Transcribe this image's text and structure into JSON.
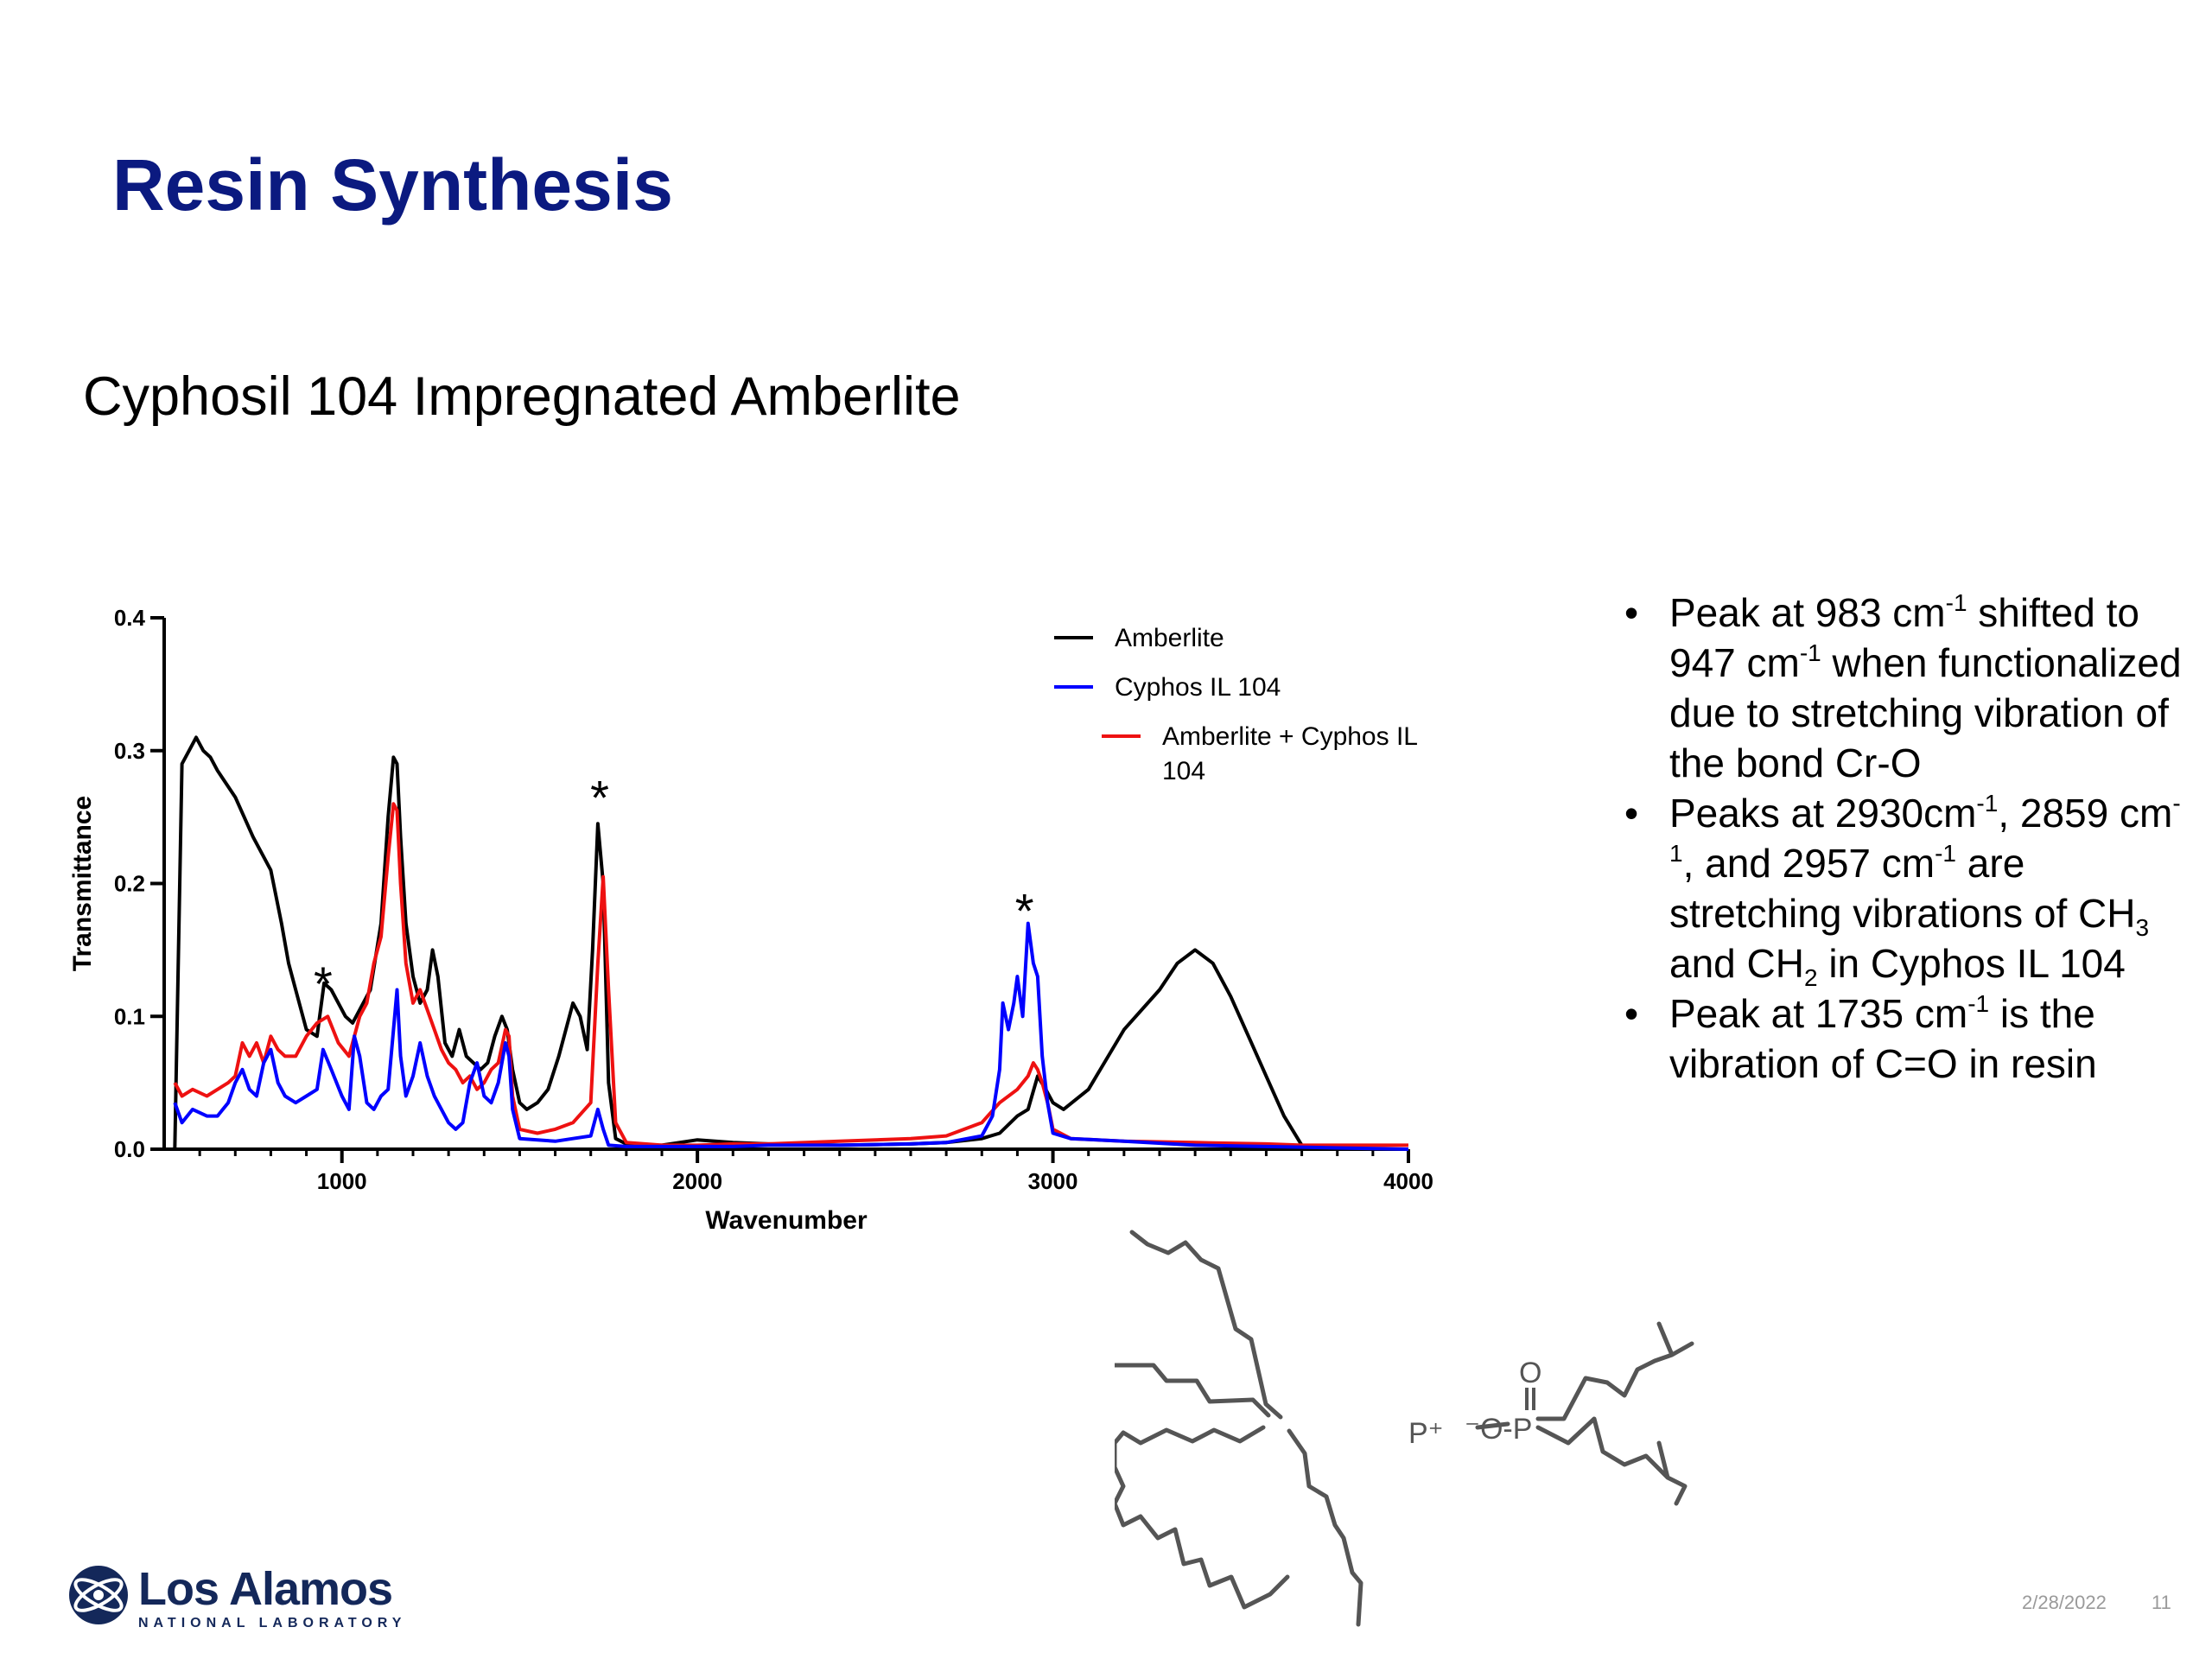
{
  "slide": {
    "title": "Resin Synthesis",
    "subtitle": "Cyphosil 104 Impregnated Amberlite",
    "date": "2/28/2022",
    "page": "11"
  },
  "bullets": [
    {
      "parts": [
        {
          "t": "Peak at 983 cm"
        },
        {
          "t": "-1",
          "sup": true
        },
        {
          "t": " shifted to 947 cm"
        },
        {
          "t": "-1",
          "sup": true
        },
        {
          "t": " when functionalized due to stretching vibration of the bond Cr-O"
        }
      ]
    },
    {
      "parts": [
        {
          "t": "Peaks at 2930cm"
        },
        {
          "t": "-1",
          "sup": true
        },
        {
          "t": ", 2859 cm"
        },
        {
          "t": "-1",
          "sup": true
        },
        {
          "t": ", and 2957 cm"
        },
        {
          "t": "-1",
          "sup": true
        },
        {
          "t": " are stretching vibrations of CH"
        },
        {
          "t": "3",
          "sub": true
        },
        {
          "t": " and CH"
        },
        {
          "t": "2",
          "sub": true
        },
        {
          "t": " in Cyphos IL 104"
        }
      ]
    },
    {
      "parts": [
        {
          "t": "Peak at 1735 cm"
        },
        {
          "t": "-1",
          "sup": true
        },
        {
          "t": " is the vibration of C=O in resin"
        }
      ]
    }
  ],
  "chart_data": {
    "type": "line",
    "xlabel": "Wavenumber",
    "ylabel": "Transmittance",
    "xlim": [
      500,
      4000
    ],
    "ylim": [
      0,
      0.4
    ],
    "xticks": [
      1000,
      2000,
      3000,
      4000
    ],
    "yticks": [
      0.0,
      0.1,
      0.2,
      0.3,
      0.4
    ],
    "grid": false,
    "legend_position": "top-right",
    "annotations": [
      {
        "text": "*",
        "x": 947,
        "y": 0.125
      },
      {
        "text": "*",
        "x": 1725,
        "y": 0.265
      },
      {
        "text": "*",
        "x": 2920,
        "y": 0.18
      }
    ],
    "series": [
      {
        "name": "Amberlite",
        "color": "#000000",
        "x": [
          530,
          550,
          570,
          590,
          610,
          630,
          650,
          700,
          750,
          800,
          830,
          850,
          870,
          900,
          930,
          950,
          970,
          990,
          1010,
          1030,
          1050,
          1080,
          1110,
          1130,
          1145,
          1155,
          1165,
          1180,
          1200,
          1220,
          1240,
          1255,
          1270,
          1290,
          1310,
          1330,
          1350,
          1370,
          1390,
          1410,
          1430,
          1450,
          1465,
          1480,
          1500,
          1520,
          1550,
          1580,
          1610,
          1630,
          1650,
          1670,
          1690,
          1705,
          1720,
          1735,
          1750,
          1770,
          1800,
          1850,
          1900,
          2000,
          2100,
          2200,
          2400,
          2600,
          2700,
          2800,
          2850,
          2900,
          2930,
          2957,
          2980,
          3000,
          3030,
          3100,
          3200,
          3300,
          3350,
          3400,
          3450,
          3500,
          3550,
          3600,
          3650,
          3700,
          3750,
          3800,
          3900,
          4000
        ],
        "y": [
          0.0,
          0.29,
          0.3,
          0.31,
          0.3,
          0.295,
          0.285,
          0.265,
          0.235,
          0.21,
          0.17,
          0.14,
          0.12,
          0.09,
          0.085,
          0.125,
          0.12,
          0.11,
          0.1,
          0.095,
          0.105,
          0.12,
          0.17,
          0.25,
          0.295,
          0.29,
          0.235,
          0.17,
          0.13,
          0.11,
          0.12,
          0.15,
          0.13,
          0.08,
          0.07,
          0.09,
          0.07,
          0.065,
          0.06,
          0.065,
          0.085,
          0.1,
          0.09,
          0.06,
          0.035,
          0.03,
          0.035,
          0.045,
          0.07,
          0.09,
          0.11,
          0.1,
          0.075,
          0.15,
          0.245,
          0.2,
          0.05,
          0.008,
          0.004,
          0.003,
          0.003,
          0.007,
          0.005,
          0.004,
          0.003,
          0.004,
          0.005,
          0.008,
          0.012,
          0.025,
          0.03,
          0.055,
          0.045,
          0.035,
          0.03,
          0.045,
          0.09,
          0.12,
          0.14,
          0.15,
          0.14,
          0.115,
          0.085,
          0.055,
          0.025,
          0.003,
          0.001,
          0.0,
          0.0,
          0.0
        ]
      },
      {
        "name": "Cyphos IL 104",
        "color": "#0000ff",
        "x": [
          530,
          550,
          580,
          620,
          650,
          680,
          700,
          720,
          740,
          760,
          780,
          800,
          820,
          840,
          870,
          900,
          930,
          947,
          970,
          1000,
          1020,
          1035,
          1050,
          1070,
          1090,
          1110,
          1130,
          1145,
          1155,
          1165,
          1180,
          1200,
          1220,
          1240,
          1260,
          1280,
          1300,
          1320,
          1340,
          1360,
          1380,
          1400,
          1420,
          1440,
          1460,
          1470,
          1480,
          1500,
          1550,
          1600,
          1650,
          1700,
          1720,
          1735,
          1750,
          1800,
          1900,
          2000,
          2100,
          2200,
          2400,
          2600,
          2700,
          2800,
          2830,
          2850,
          2859,
          2875,
          2890,
          2900,
          2915,
          2930,
          2945,
          2957,
          2970,
          2985,
          3000,
          3050,
          3200,
          3400,
          3600,
          3800,
          4000
        ],
        "y": [
          0.035,
          0.02,
          0.03,
          0.025,
          0.025,
          0.035,
          0.05,
          0.06,
          0.045,
          0.04,
          0.065,
          0.075,
          0.05,
          0.04,
          0.035,
          0.04,
          0.045,
          0.075,
          0.06,
          0.04,
          0.03,
          0.085,
          0.07,
          0.035,
          0.03,
          0.04,
          0.045,
          0.09,
          0.12,
          0.07,
          0.04,
          0.055,
          0.08,
          0.055,
          0.04,
          0.03,
          0.02,
          0.015,
          0.02,
          0.05,
          0.065,
          0.04,
          0.035,
          0.05,
          0.08,
          0.07,
          0.03,
          0.008,
          0.007,
          0.006,
          0.008,
          0.01,
          0.03,
          0.015,
          0.003,
          0.002,
          0.002,
          0.002,
          0.002,
          0.003,
          0.003,
          0.004,
          0.005,
          0.01,
          0.025,
          0.06,
          0.11,
          0.09,
          0.11,
          0.13,
          0.1,
          0.17,
          0.14,
          0.13,
          0.07,
          0.035,
          0.012,
          0.008,
          0.006,
          0.003,
          0.002,
          0.001,
          0.0
        ]
      },
      {
        "name": "Amberlite + Cyphos IL 104",
        "color": "#ee1111",
        "x": [
          530,
          550,
          580,
          620,
          650,
          680,
          700,
          720,
          740,
          760,
          780,
          800,
          820,
          840,
          870,
          900,
          930,
          960,
          990,
          1020,
          1050,
          1070,
          1090,
          1110,
          1130,
          1145,
          1155,
          1165,
          1180,
          1200,
          1220,
          1240,
          1260,
          1280,
          1300,
          1320,
          1340,
          1360,
          1380,
          1400,
          1420,
          1440,
          1460,
          1470,
          1480,
          1500,
          1550,
          1600,
          1650,
          1700,
          1720,
          1735,
          1750,
          1770,
          1800,
          1900,
          2000,
          2100,
          2200,
          2400,
          2600,
          2700,
          2800,
          2850,
          2900,
          2930,
          2945,
          2957,
          2970,
          2985,
          3000,
          3050,
          3200,
          3400,
          3600,
          3700,
          3800,
          4000
        ],
        "y": [
          0.05,
          0.04,
          0.045,
          0.04,
          0.045,
          0.05,
          0.055,
          0.08,
          0.07,
          0.08,
          0.065,
          0.085,
          0.075,
          0.07,
          0.07,
          0.085,
          0.095,
          0.1,
          0.08,
          0.07,
          0.1,
          0.11,
          0.14,
          0.16,
          0.22,
          0.26,
          0.255,
          0.2,
          0.14,
          0.11,
          0.12,
          0.105,
          0.09,
          0.075,
          0.065,
          0.06,
          0.05,
          0.055,
          0.045,
          0.05,
          0.06,
          0.065,
          0.09,
          0.085,
          0.04,
          0.015,
          0.012,
          0.015,
          0.02,
          0.035,
          0.14,
          0.205,
          0.12,
          0.02,
          0.005,
          0.003,
          0.003,
          0.004,
          0.004,
          0.006,
          0.008,
          0.01,
          0.02,
          0.035,
          0.045,
          0.055,
          0.065,
          0.06,
          0.05,
          0.035,
          0.015,
          0.008,
          0.006,
          0.005,
          0.004,
          0.003,
          0.003,
          0.003
        ]
      }
    ]
  }
}
